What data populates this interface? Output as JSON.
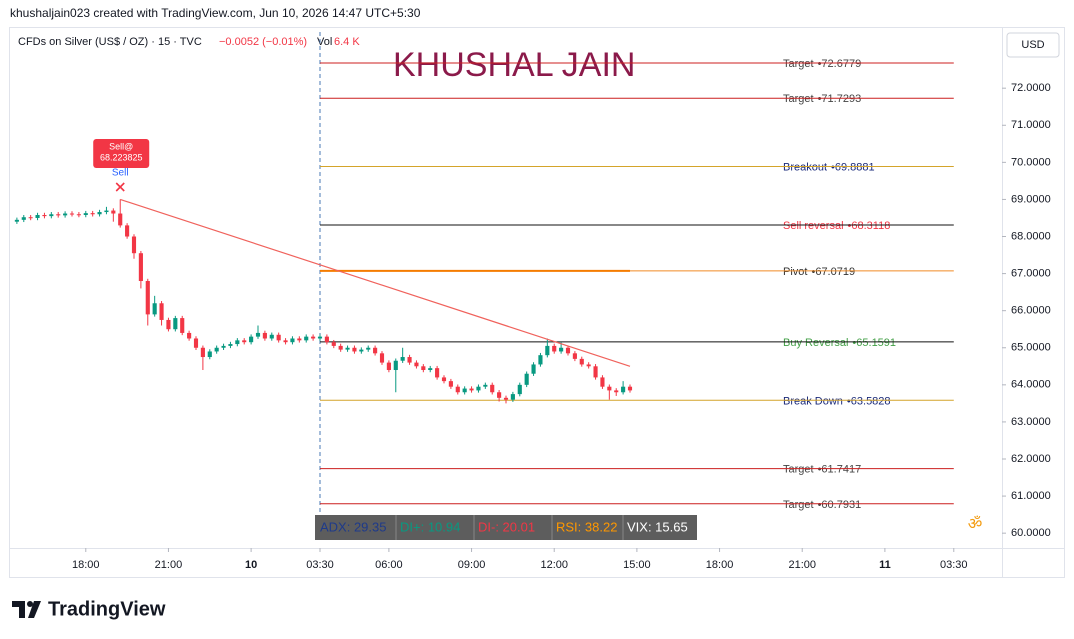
{
  "header": {
    "credit": "khushaljain023 created with TradingView.com, Jun 10, 2026 14:47 UTC+5:30"
  },
  "chart_data": {
    "type": "candlestick",
    "symbol": "CFDs on Silver (US$ / OZ) · 15 · TVC",
    "change": "−0.0052 (−0.01%)",
    "volume_label": "Vol",
    "volume": "6.4 K",
    "watermark": "KHUSHAL JAIN",
    "currency": "USD",
    "up_color": "#089981",
    "down_color": "#f23645",
    "xlim": [
      0,
      144
    ],
    "ylim": [
      59.6,
      73.65
    ],
    "yticks": [
      {
        "value": 72,
        "label": "72.0000"
      },
      {
        "value": 71,
        "label": "71.0000"
      },
      {
        "value": 70,
        "label": "70.0000"
      },
      {
        "value": 69,
        "label": "69.0000"
      },
      {
        "value": 68,
        "label": "68.0000"
      },
      {
        "value": 67,
        "label": "67.0000"
      },
      {
        "value": 66,
        "label": "66.0000"
      },
      {
        "value": 65,
        "label": "65.0000"
      },
      {
        "value": 64,
        "label": "64.0000"
      },
      {
        "value": 63,
        "label": "63.0000"
      },
      {
        "value": 62,
        "label": "62.0000"
      },
      {
        "value": 61,
        "label": "61.0000"
      },
      {
        "value": 60,
        "label": "60.0000"
      }
    ],
    "xticks": [
      {
        "value": 11,
        "label": "18:00"
      },
      {
        "value": 23,
        "label": "21:00"
      },
      {
        "value": 35,
        "label": "10"
      },
      {
        "value": 45,
        "label": "03:30"
      },
      {
        "value": 55,
        "label": "06:00"
      },
      {
        "value": 67,
        "label": "09:00"
      },
      {
        "value": 79,
        "label": "12:00"
      },
      {
        "value": 91,
        "label": "15:00"
      },
      {
        "value": 103,
        "label": "18:00"
      },
      {
        "value": 115,
        "label": "21:00"
      },
      {
        "value": 127,
        "label": "11"
      },
      {
        "value": 137,
        "label": "03:30"
      }
    ],
    "x": [
      1,
      2,
      3,
      4,
      5,
      6,
      7,
      8,
      9,
      10,
      11,
      12,
      13,
      14,
      15,
      16,
      17,
      18,
      19,
      20,
      21,
      22,
      23,
      24,
      25,
      26,
      27,
      28,
      29,
      30,
      31,
      32,
      33,
      34,
      35,
      36,
      37,
      38,
      39,
      40,
      41,
      42,
      43,
      44,
      45,
      46,
      47,
      48,
      49,
      50,
      51,
      52,
      53,
      54,
      55,
      56,
      57,
      58,
      59,
      60,
      61,
      62,
      63,
      64,
      65,
      66,
      67,
      68,
      69,
      70,
      71,
      72,
      73,
      74,
      75,
      76,
      77,
      78,
      79,
      80,
      81,
      82,
      83,
      84,
      85,
      86,
      87,
      88,
      89,
      90
    ],
    "open": [
      68.4,
      68.45,
      68.52,
      68.5,
      68.58,
      68.55,
      68.6,
      68.57,
      68.62,
      68.6,
      68.58,
      68.63,
      68.6,
      68.66,
      68.7,
      68.62,
      68.3,
      68.0,
      67.55,
      66.8,
      65.9,
      66.2,
      65.75,
      65.5,
      65.8,
      65.4,
      65.25,
      65.0,
      64.75,
      64.9,
      65.0,
      65.05,
      65.1,
      65.2,
      65.15,
      65.3,
      65.4,
      65.25,
      65.35,
      65.2,
      65.15,
      65.25,
      65.2,
      65.3,
      65.25,
      65.3,
      65.15,
      65.05,
      64.95,
      65.0,
      64.9,
      64.95,
      65.0,
      64.85,
      64.6,
      64.4,
      64.65,
      64.75,
      64.6,
      64.5,
      64.4,
      64.45,
      64.2,
      64.1,
      63.95,
      63.8,
      63.9,
      63.85,
      63.95,
      64.0,
      63.8,
      63.65,
      63.6,
      63.75,
      64.0,
      64.3,
      64.55,
      64.8,
      65.05,
      64.9,
      65.0,
      64.85,
      64.7,
      64.55,
      64.5,
      64.2,
      63.95,
      63.85,
      63.8,
      63.95
    ],
    "high": [
      68.51,
      68.58,
      68.58,
      68.64,
      68.64,
      68.66,
      68.66,
      68.68,
      68.68,
      68.66,
      68.69,
      68.69,
      68.72,
      68.8,
      68.76,
      69.0,
      68.36,
      68.06,
      67.61,
      66.86,
      66.4,
      66.26,
      65.81,
      65.86,
      65.86,
      65.46,
      65.31,
      65.06,
      64.96,
      65.06,
      65.11,
      65.16,
      65.26,
      65.26,
      65.36,
      65.6,
      65.46,
      65.41,
      65.41,
      65.26,
      65.31,
      65.31,
      65.36,
      65.36,
      65.36,
      65.36,
      65.21,
      65.11,
      65.06,
      65.06,
      65.01,
      65.06,
      65.06,
      64.91,
      64.66,
      64.71,
      65.0,
      64.81,
      64.66,
      64.56,
      64.51,
      64.51,
      64.26,
      64.16,
      64.01,
      63.96,
      63.96,
      64.01,
      64.06,
      64.06,
      63.86,
      63.71,
      63.81,
      64.06,
      64.36,
      64.61,
      64.86,
      65.25,
      65.11,
      65.15,
      65.06,
      64.91,
      64.76,
      64.61,
      64.56,
      64.26,
      64.01,
      63.91,
      64.1,
      64.01
    ],
    "low": [
      68.34,
      68.39,
      68.44,
      68.44,
      68.49,
      68.49,
      68.51,
      68.51,
      68.54,
      68.52,
      68.52,
      68.54,
      68.54,
      68.6,
      68.4,
      68.24,
      67.94,
      67.4,
      66.6,
      65.6,
      65.84,
      65.6,
      65.44,
      65.44,
      65.34,
      65.19,
      64.94,
      64.4,
      64.69,
      64.84,
      64.94,
      64.99,
      65.04,
      65.09,
      65.09,
      65.24,
      65.19,
      65.19,
      65.14,
      65.09,
      65.09,
      65.14,
      65.14,
      65.19,
      65.19,
      65.09,
      64.99,
      64.89,
      64.89,
      64.84,
      64.84,
      64.89,
      64.79,
      64.54,
      64.34,
      63.8,
      64.59,
      64.54,
      64.44,
      64.34,
      64.34,
      64.14,
      64.04,
      63.89,
      63.74,
      63.74,
      63.79,
      63.79,
      63.89,
      63.74,
      63.55,
      63.5,
      63.54,
      63.69,
      63.94,
      64.24,
      64.49,
      64.74,
      64.84,
      64.84,
      64.79,
      64.64,
      64.49,
      64.44,
      64.14,
      63.89,
      63.6,
      63.7,
      63.74,
      63.79
    ],
    "close": [
      68.45,
      68.52,
      68.5,
      68.58,
      68.55,
      68.6,
      68.57,
      68.62,
      68.6,
      68.58,
      68.63,
      68.6,
      68.66,
      68.7,
      68.62,
      68.3,
      68.0,
      67.55,
      66.8,
      65.9,
      66.2,
      65.75,
      65.5,
      65.8,
      65.4,
      65.25,
      65.0,
      64.75,
      64.9,
      65.0,
      65.05,
      65.1,
      65.2,
      65.15,
      65.3,
      65.4,
      65.25,
      65.35,
      65.2,
      65.15,
      65.25,
      65.2,
      65.3,
      65.25,
      65.3,
      65.15,
      65.05,
      64.95,
      65.0,
      64.9,
      64.95,
      65.0,
      64.85,
      64.6,
      64.4,
      64.65,
      64.75,
      64.6,
      64.5,
      64.4,
      64.45,
      64.2,
      64.1,
      63.95,
      63.8,
      63.9,
      63.85,
      63.95,
      64.0,
      63.8,
      63.65,
      63.6,
      63.75,
      64.0,
      64.3,
      64.55,
      64.8,
      65.05,
      64.9,
      65.0,
      64.85,
      64.7,
      64.55,
      64.5,
      64.2,
      63.95,
      63.85,
      63.8,
      63.95,
      63.85
    ],
    "levels_x": [
      45,
      137
    ],
    "levels": [
      {
        "name": "Target",
        "value": 72.6779,
        "value_label": "•72.6779",
        "color": "#cc1f1f",
        "text_color": "#444444"
      },
      {
        "name": "Target",
        "value": 71.7293,
        "value_label": "•71.7293",
        "color": "#cc1f1f",
        "text_color": "#444444"
      },
      {
        "name": "Breakout",
        "value": 69.8881,
        "value_label": "•69.8881",
        "color": "#d4a42a",
        "text_color": "#1a2a7a"
      },
      {
        "name": "Sell reversal",
        "value": 68.3118,
        "value_label": "•68.3118",
        "color": "#111111",
        "text_color": "#f23645"
      },
      {
        "name": "Pivot",
        "value": 67.0719,
        "value_label": "•67.0719",
        "color": "#f08a24",
        "text_color": "#333333"
      },
      {
        "name": "Buy Reversal",
        "value": 65.1591,
        "value_label": "•65.1591",
        "color": "#111111",
        "text_color": "#43a047"
      },
      {
        "name": "Break Down",
        "value": 63.5828,
        "value_label": "•63.5828",
        "color": "#d4a42a",
        "text_color": "#1a2a7a"
      },
      {
        "name": "Target",
        "value": 61.7417,
        "value_label": "•61.7417",
        "color": "#cc1f1f",
        "text_color": "#444444"
      },
      {
        "name": "Target",
        "value": 60.7931,
        "value_label": "•60.7931",
        "color": "#cc1f1f",
        "text_color": "#444444"
      }
    ],
    "pivot_line": {
      "x": [
        45,
        90
      ],
      "y": 67.0719,
      "color": "#f57c00"
    },
    "trendline": {
      "x": [
        16,
        90
      ],
      "y": [
        69.0,
        64.5
      ],
      "color": "#f0625c"
    },
    "session_line_x": 45,
    "signal": {
      "box": [
        "Sell@",
        "68.223825"
      ],
      "text": "Sell"
    },
    "indicators": [
      {
        "text": "ADX: 29.35",
        "color": "#1e3a8a"
      },
      {
        "text": "DI+: 10.94",
        "color": "#089981"
      },
      {
        "text": "DI-: 20.01",
        "color": "#f23645"
      },
      {
        "text": "RSI: 38.22",
        "color": "#ff9800"
      },
      {
        "text": "VIX: 15.65",
        "color": "#ffffff"
      }
    ],
    "symbol_mark": "ॐ"
  },
  "footer": {
    "brand": "TradingView"
  }
}
